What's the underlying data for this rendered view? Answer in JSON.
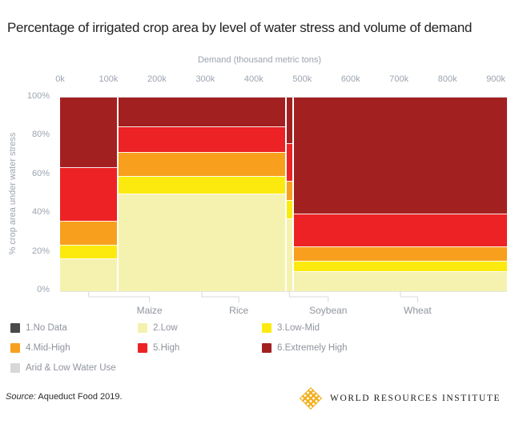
{
  "title": "Percentage of irrigated crop area by level of water stress and volume of demand",
  "chart_data": {
    "type": "marimekko",
    "title": "Percentage of irrigated crop area by level of water stress and volume of demand",
    "xlabel": "Demand (thousand metric tons)",
    "ylabel": "% crop area under water stress",
    "x_ticks": [
      "0k",
      "100k",
      "200k",
      "300k",
      "400k",
      "500k",
      "600k",
      "700k",
      "800k",
      "900k"
    ],
    "x_tick_interval_k": 100,
    "y_ticks": [
      "0%",
      "20%",
      "40%",
      "60%",
      "80%",
      "100%"
    ],
    "ylim": [
      0,
      100
    ],
    "grid": false,
    "legend_position": "bottom-left",
    "series_order_bottom_to_top": [
      "2.Low",
      "3.Low-Mid",
      "4.Mid-High",
      "5.High",
      "6.Extremely High"
    ],
    "categories": [
      {
        "name": "Maize",
        "demand_thousand_tons": 118,
        "pct": {
          "2.Low": 17,
          "3.Low-Mid": 7,
          "4.Mid-High": 12.5,
          "5.High": 27.5,
          "6.Extremely High": 36
        }
      },
      {
        "name": "Rice",
        "demand_thousand_tons": 343,
        "pct": {
          "2.Low": 50.5,
          "3.Low-Mid": 9,
          "4.Mid-High": 12.5,
          "5.High": 13,
          "6.Extremely High": 15
        }
      },
      {
        "name": "Soybean",
        "demand_thousand_tons": 12,
        "pct": {
          "2.Low": 37.5,
          "3.Low-Mid": 9.5,
          "4.Mid-High": 10,
          "5.High": 19.5,
          "6.Extremely High": 23.5
        }
      },
      {
        "name": "Wheat",
        "demand_thousand_tons": 440,
        "pct": {
          "2.Low": 10.5,
          "3.Low-Mid": 5,
          "4.Mid-High": 7.5,
          "5.High": 17,
          "6.Extremely High": 60
        }
      }
    ],
    "legend": [
      {
        "label": "1.No Data",
        "color": "#4A4A4A"
      },
      {
        "label": "2.Low",
        "color": "#F5F2AF"
      },
      {
        "label": "3.Low-Mid",
        "color": "#FCEA0F"
      },
      {
        "label": "4.Mid-High",
        "color": "#F8A01E"
      },
      {
        "label": "5.High",
        "color": "#ED2224"
      },
      {
        "label": "6.Extremely High",
        "color": "#A32021"
      },
      {
        "label": "Arid & Low Water Use",
        "color": "#D8D8D8"
      }
    ]
  },
  "footer": {
    "source_label": "Source:",
    "source_text": " Aqueduct Food 2019.",
    "logo_text": "WORLD RESOURCES INSTITUTE",
    "logo_icon": "wri-diamond-lattice",
    "logo_color": "#F2AE1D"
  }
}
